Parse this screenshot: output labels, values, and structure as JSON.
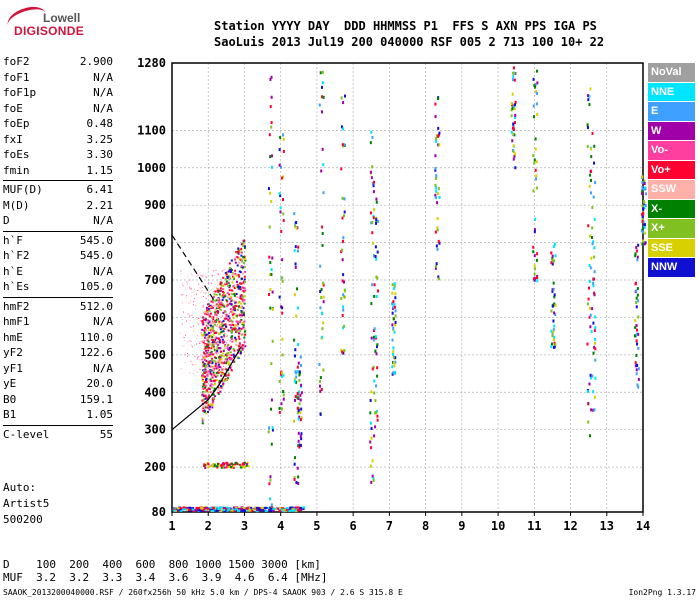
{
  "logo": {
    "line1": "Lowell",
    "line2": "DIGISONDE"
  },
  "header": {
    "line1": "Station YYYY DAY  DDD HHMMSS P1  FFS S AXN PPS IGA PS",
    "line2": "SaoLuis 2013 Jul19 200 040000 RSF 005 2 713 100 10+ 22"
  },
  "params_group1": [
    {
      "k": "foF2",
      "v": "2.900"
    },
    {
      "k": "foF1",
      "v": "N/A"
    },
    {
      "k": "foF1p",
      "v": "N/A"
    },
    {
      "k": "foE",
      "v": "N/A"
    },
    {
      "k": "foEp",
      "v": "0.48"
    },
    {
      "k": "fxI",
      "v": "3.25"
    },
    {
      "k": "foEs",
      "v": "3.30"
    },
    {
      "k": "fmin",
      "v": "1.15"
    }
  ],
  "params_group2": [
    {
      "k": "MUF(D)",
      "v": "6.41"
    },
    {
      "k": "M(D)",
      "v": "2.21"
    },
    {
      "k": "D",
      "v": "N/A"
    }
  ],
  "params_group3": [
    {
      "k": "h`F",
      "v": "545.0"
    },
    {
      "k": "h`F2",
      "v": "545.0"
    },
    {
      "k": "h`E",
      "v": "N/A"
    },
    {
      "k": "h`Es",
      "v": "105.0"
    }
  ],
  "params_group4": [
    {
      "k": "hmF2",
      "v": "512.0"
    },
    {
      "k": "hmF1",
      "v": "N/A"
    },
    {
      "k": "hmE",
      "v": "110.0"
    },
    {
      "k": "yF2",
      "v": "122.6"
    },
    {
      "k": "yF1",
      "v": "N/A"
    },
    {
      "k": "yE",
      "v": "20.0"
    },
    {
      "k": "B0",
      "v": "159.1"
    },
    {
      "k": "B1",
      "v": "1.05"
    }
  ],
  "params_group5": [
    {
      "k": "C-level",
      "v": "55"
    }
  ],
  "artist": {
    "l1": "Auto:",
    "l2": "Artist5",
    "l3": "500200"
  },
  "legend": [
    {
      "label": "NoVal",
      "color": "#a0a0a0"
    },
    {
      "label": "NNE",
      "color": "#00e5ff"
    },
    {
      "label": "E",
      "color": "#3fa0ff"
    },
    {
      "label": "W",
      "color": "#a000a8"
    },
    {
      "label": "Vo-",
      "color": "#ff3fa0"
    },
    {
      "label": "Vo+",
      "color": "#ff0030"
    },
    {
      "label": "SSW",
      "color": "#ffb0a8"
    },
    {
      "label": "X-",
      "color": "#008000"
    },
    {
      "label": "X+",
      "color": "#80c020"
    },
    {
      "label": "SSE",
      "color": "#d8d000"
    },
    {
      "label": "NNW",
      "color": "#1010d0"
    }
  ],
  "distance_table": {
    "d_line": "D    100  200  400  600  800 1000 1500 3000 [km]",
    "muf_line": "MUF  3.2  3.2  3.3  3.4  3.6  3.9  4.6  6.4 [MHz]"
  },
  "footer": "SAAOK_2013200040000.RSF / 260fx256h 50 kHz 5.0 km / DPS-4 SAAOK 903 / 2.6 S 315.8 E",
  "version": "Ion2Png 1.3.17",
  "chart_data": {
    "type": "scatter",
    "xlabel": "",
    "ylabel": "",
    "xlim": [
      1,
      14
    ],
    "ylim": [
      80,
      1280
    ],
    "xticks": [
      1,
      2,
      3,
      4,
      5,
      6,
      7,
      8,
      9,
      10,
      11,
      12,
      13,
      14
    ],
    "yticks": [
      80,
      200,
      300,
      400,
      500,
      600,
      700,
      800,
      900,
      1000,
      1100,
      1280
    ],
    "grid": true,
    "traces": [
      {
        "name": "trace",
        "x": [
          1.0,
          1.5,
          2.0,
          2.3,
          2.6,
          2.9
        ],
        "y": [
          300,
          340,
          380,
          420,
          470,
          520
        ]
      },
      {
        "name": "dashed",
        "x": [
          1.0,
          1.4,
          1.8,
          2.2
        ],
        "y": [
          820,
          760,
          700,
          640
        ]
      }
    ]
  }
}
